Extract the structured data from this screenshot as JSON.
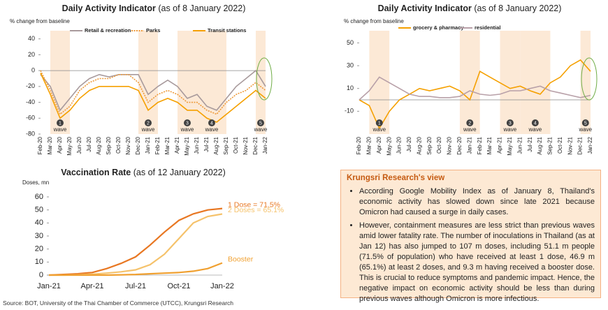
{
  "chart_data": [
    {
      "type": "line",
      "title": "Daily Activity Indicator",
      "title_note": "(as of 8 January 2022)",
      "y_label": "% change from baseline",
      "categories": [
        "Feb-20",
        "Mar-20",
        "Apr-20",
        "May-20",
        "Jun-20",
        "Jul-20",
        "Aug-20",
        "Sep-20",
        "Oct-20",
        "Nov-20",
        "Dec-20",
        "Jan-21",
        "Feb-21",
        "Mar-21",
        "Apr-21",
        "May-21",
        "Jun-21",
        "Jul-21",
        "Aug-21",
        "Sep-21",
        "Oct-21",
        "Nov-21",
        "Dec-21",
        "Jan-22"
      ],
      "series": [
        {
          "name": "Retail & recreation",
          "color": "#a89a9c",
          "style": "solid",
          "values": [
            -5,
            -20,
            -50,
            -35,
            -20,
            -10,
            -5,
            -8,
            -5,
            -5,
            -5,
            -30,
            -20,
            -12,
            -20,
            -35,
            -30,
            -45,
            -50,
            -35,
            -20,
            -10,
            0,
            -20
          ]
        },
        {
          "name": "Parks",
          "color": "#ee9a3a",
          "style": "dotted",
          "values": [
            0,
            -25,
            -55,
            -45,
            -25,
            -15,
            -10,
            -10,
            -5,
            -5,
            -15,
            -40,
            -30,
            -25,
            -30,
            -40,
            -40,
            -50,
            -55,
            -40,
            -30,
            -25,
            -15,
            -25
          ]
        },
        {
          "name": "Transit stations",
          "color": "#f5a000",
          "style": "solid",
          "values": [
            -3,
            -30,
            -60,
            -50,
            -35,
            -25,
            -20,
            -20,
            -20,
            -20,
            -25,
            -50,
            -40,
            -35,
            -40,
            -50,
            -50,
            -60,
            -65,
            -55,
            -45,
            -35,
            -25,
            -35
          ]
        }
      ],
      "ylim": [
        -80,
        45
      ],
      "yticks": [
        -80,
        -60,
        -40,
        -20,
        0,
        20,
        40
      ],
      "zero_line": true,
      "waves": [
        {
          "number": "1",
          "text": "wave",
          "from": "Mar-20",
          "to": "May-20"
        },
        {
          "number": "2",
          "text": "wave",
          "from": "Dec-20",
          "to": "Feb-21"
        },
        {
          "number": "3",
          "text": "wave",
          "from": "Apr-21",
          "to": "Jun-21"
        },
        {
          "number": "4",
          "text": "wave",
          "from": "Jun-21",
          "to": "Sep-21"
        },
        {
          "number": "5",
          "text": "wave",
          "from": "Dec-21",
          "to": "Jan-22"
        }
      ]
    },
    {
      "type": "line",
      "title": "Daily Activity Indicator",
      "title_note": "(as of 8 January 2022)",
      "y_label": "% change from baseline",
      "categories": [
        "Feb-20",
        "Mar-20",
        "Apr-20",
        "May-20",
        "Jun-20",
        "Jul-20",
        "Aug-20",
        "Sep-20",
        "Oct-20",
        "Nov-20",
        "Dec-20",
        "Jan-21",
        "Feb-21",
        "Mar-21",
        "Apr-21",
        "May-21",
        "Jun-21",
        "Jul-21",
        "Aug-21",
        "Sep-21",
        "Oct-21",
        "Nov-21",
        "Dec-21",
        "Jan-22"
      ],
      "series": [
        {
          "name": "grocery & pharmacy",
          "color": "#f5a000",
          "style": "solid",
          "values": [
            0,
            -5,
            -25,
            -10,
            0,
            5,
            10,
            8,
            10,
            12,
            8,
            0,
            25,
            20,
            15,
            10,
            12,
            8,
            5,
            15,
            20,
            30,
            35,
            25
          ]
        },
        {
          "name": "residential",
          "color": "#b8a0a8",
          "style": "solid",
          "values": [
            0,
            8,
            20,
            15,
            10,
            5,
            3,
            3,
            2,
            2,
            3,
            8,
            5,
            4,
            5,
            8,
            8,
            10,
            12,
            8,
            6,
            4,
            2,
            4
          ]
        }
      ],
      "ylim": [
        -30,
        57
      ],
      "yticks": [
        -10,
        10,
        30,
        50
      ],
      "zero_line": true,
      "waves": [
        {
          "number": "1",
          "text": "wave",
          "from": "Mar-20",
          "to": "May-20"
        },
        {
          "number": "2",
          "text": "wave",
          "from": "Dec-20",
          "to": "Feb-21"
        },
        {
          "number": "3",
          "text": "wave",
          "from": "Apr-21",
          "to": "Jun-21"
        },
        {
          "number": "4",
          "text": "wave",
          "from": "Jun-21",
          "to": "Sep-21"
        },
        {
          "number": "5",
          "text": "wave",
          "from": "Dec-21",
          "to": "Jan-22"
        }
      ]
    },
    {
      "type": "line",
      "title": "Vaccination Rate",
      "title_note": "(as of 12 January 2022)",
      "y_label": "Doses, mn",
      "categories": [
        "Jan-21",
        null,
        null,
        "Apr-21",
        null,
        null,
        "Jul-21",
        null,
        null,
        "Oct-21",
        null,
        null,
        "Jan-22"
      ],
      "series": [
        {
          "name": "1 Dose = 71.5%",
          "color": "#e87722",
          "style": "solid",
          "values": [
            0,
            0.5,
            1,
            2,
            5,
            9,
            14,
            23,
            33,
            42,
            47,
            50,
            51.1
          ]
        },
        {
          "name": "2 Doses = 65.1%",
          "color": "#f5c26b",
          "style": "solid",
          "values": [
            0,
            0,
            0.2,
            0.7,
            1.5,
            2.5,
            4,
            8,
            16,
            28,
            40,
            45,
            46.9
          ]
        },
        {
          "name": "Booster",
          "color": "#f0a030",
          "style": "solid",
          "values": [
            0,
            0,
            0,
            0,
            0,
            0.2,
            0.5,
            1,
            1.5,
            2,
            3,
            5,
            9.3
          ]
        }
      ],
      "ylim": [
        0,
        60
      ],
      "yticks": [
        0,
        10,
        20,
        30,
        40,
        50,
        60
      ],
      "zero_line": false,
      "end_labels": true
    }
  ],
  "view": {
    "title": "Krungsri Research's view",
    "bullets": [
      "According Google Mobility Index as of January 8, Thailand's economic activity has slowed down since late 2021 because Omicron had caused a surge in daily cases.",
      "However, containment measures are less strict than previous waves amid lower fatality rate. The number of inoculations in Thailand (as at Jan 12) has also jumped to 107 m doses, including 51.1 m  people (71.5% of population) who have received at least 1 dose, 46.9 m (65.1%) at least 2 doses, and 9.3 m having received a booster dose. This is crucial to reduce symptoms and pandemic impact. Hence, the negative impact on economic activity should be less than during previous waves although Omicron is more infectious."
    ]
  },
  "source": "Source: BOT, University of the Thai Chamber of Commerce (UTCC), Krungsri Research"
}
